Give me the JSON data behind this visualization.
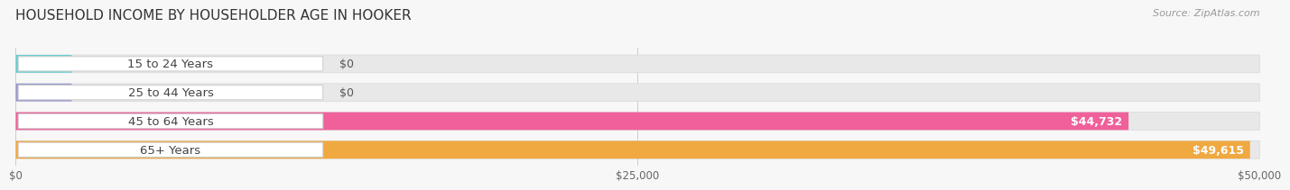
{
  "title": "HOUSEHOLD INCOME BY HOUSEHOLDER AGE IN HOOKER",
  "source": "Source: ZipAtlas.com",
  "categories": [
    "15 to 24 Years",
    "25 to 44 Years",
    "45 to 64 Years",
    "65+ Years"
  ],
  "values": [
    0,
    0,
    44732,
    49615
  ],
  "bar_colors": [
    "#68cece",
    "#9898d0",
    "#f0609a",
    "#f0a840"
  ],
  "value_labels": [
    "$0",
    "$0",
    "$44,732",
    "$49,615"
  ],
  "xlim": [
    0,
    50000
  ],
  "xticks": [
    0,
    25000,
    50000
  ],
  "xtick_labels": [
    "$0",
    "$25,000",
    "$50,000"
  ],
  "bg_color": "#f7f7f7",
  "bar_bg_color": "#e8e8e8",
  "title_fontsize": 11,
  "label_fontsize": 9.5,
  "value_fontsize": 9
}
